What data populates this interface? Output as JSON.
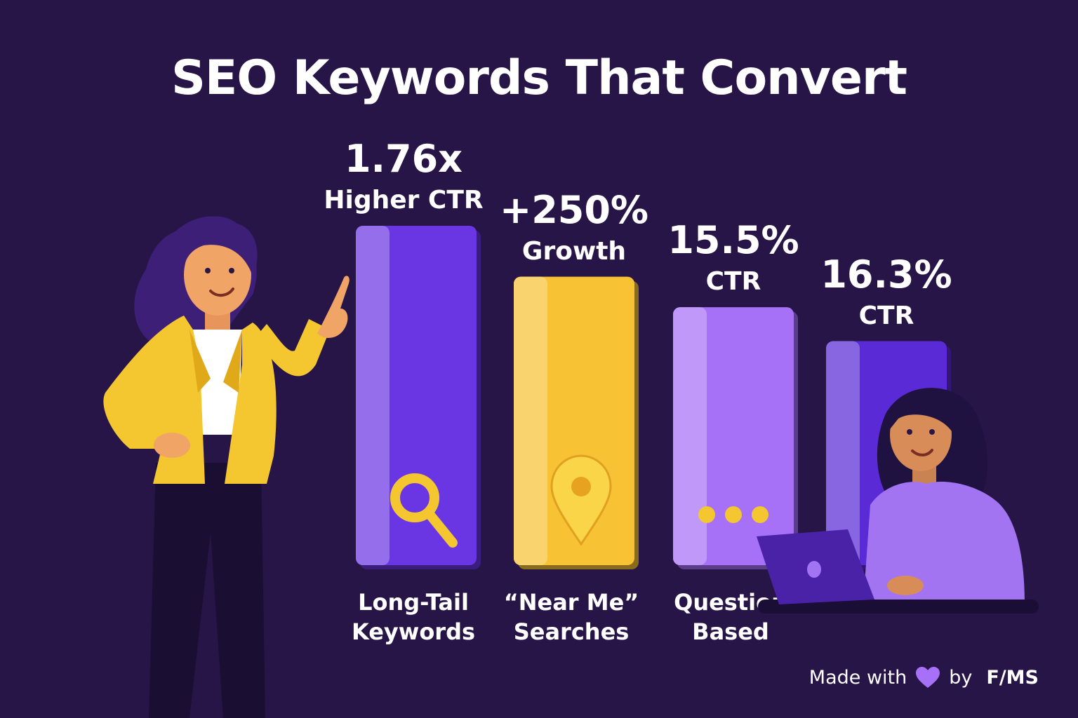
{
  "title": "SEO Keywords That Convert",
  "footer": {
    "made_with": "Made with",
    "by": "by",
    "brand": "F/MS"
  },
  "colors": {
    "background": "#271547",
    "purple": "#6a35e3",
    "yellow": "#f7c234",
    "lavender": "#a670f7",
    "violet": "#5a2ad6"
  },
  "chart_data": {
    "type": "bar",
    "title": "SEO Keywords That Convert",
    "xlabel": "",
    "ylabel": "",
    "grid": false,
    "legend": "none",
    "categories": [
      "Long-Tail Keywords",
      "“Near Me” Searches",
      "Question Based",
      ""
    ],
    "bars": [
      {
        "value_text": "1.76x",
        "metric": "Higher CTR",
        "label_lines": [
          "Long-Tail",
          "Keywords"
        ],
        "color": "#6a35e3",
        "icon": "search-icon",
        "relative_height": 1.0
      },
      {
        "value_text": "+250%",
        "metric": "Growth",
        "label_lines": [
          "“Near Me”",
          "Searches"
        ],
        "color": "#f7c234",
        "icon": "location-pin-icon",
        "relative_height": 0.85
      },
      {
        "value_text": "15.5%",
        "metric": "CTR",
        "label_lines": [
          "Question",
          "Based"
        ],
        "color": "#a670f7",
        "icon": "ellipsis-icon",
        "relative_height": 0.76
      },
      {
        "value_text": "16.3%",
        "metric": "CTR",
        "label_lines": [],
        "color": "#5a2ad6",
        "icon": "",
        "relative_height": 0.66
      }
    ]
  }
}
